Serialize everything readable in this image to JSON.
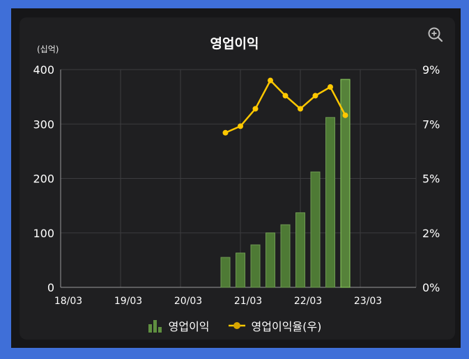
{
  "chart_data": {
    "type": "bar",
    "title": "영업이익",
    "left_unit": "(십억)",
    "x_ticks": [
      "18/03",
      "19/03",
      "20/03",
      "21/03",
      "22/03",
      "23/03"
    ],
    "y_left": {
      "ylim": [
        0,
        400
      ],
      "ticks": [
        "0",
        "100",
        "200",
        "300",
        "400"
      ]
    },
    "y_right": {
      "ylim": [
        0,
        10
      ],
      "ticks": [
        "0%",
        "2%",
        "5%",
        "7%",
        "9%"
      ]
    },
    "grid": true,
    "legend_position": "bottom",
    "series": [
      {
        "name": "영업이익",
        "type": "bar",
        "axis": "left",
        "color": "#4e7a35",
        "x": [
          "20/12",
          "21/03",
          "21/06",
          "21/09",
          "21/12",
          "22/03",
          "22/06",
          "22/09",
          "22/12"
        ],
        "values": [
          55,
          63,
          78,
          100,
          115,
          137,
          212,
          312,
          382
        ]
      },
      {
        "name": "영업이익율(우)",
        "type": "line",
        "axis": "right",
        "color": "#ffc800",
        "x": [
          "20/12",
          "21/03",
          "21/06",
          "21/09",
          "21/12",
          "22/03",
          "22/06",
          "22/09",
          "22/12"
        ],
        "values": [
          7.1,
          7.4,
          8.2,
          9.5,
          8.8,
          8.2,
          8.8,
          9.2,
          7.9
        ]
      }
    ]
  }
}
